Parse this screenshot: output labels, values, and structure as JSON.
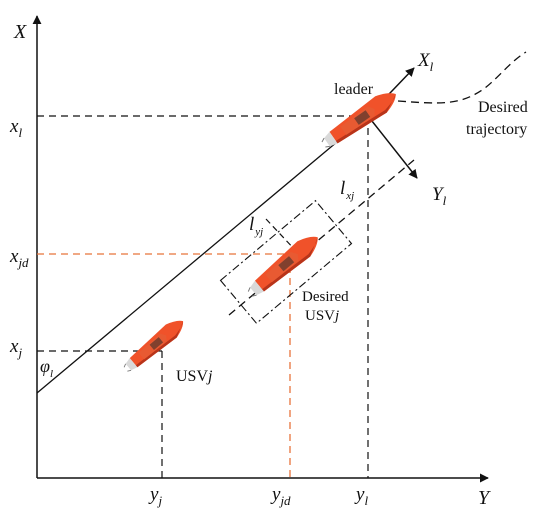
{
  "colors": {
    "ink": "#111111",
    "desired": "#e8743b",
    "boat_hull": "#f0522a",
    "boat_dark": "#b8341a",
    "boat_deck": "#e6e6e6"
  },
  "axes": {
    "x_axis": {
      "base": "X"
    },
    "y_axis": {
      "base": "Y"
    },
    "leader_x": {
      "base": "X",
      "sub": "l"
    },
    "leader_y": {
      "base": "Y",
      "sub": "l"
    }
  },
  "ticks": {
    "x_l": {
      "base": "x",
      "sub": "l"
    },
    "x_jd": {
      "base": "x",
      "sub": "jd"
    },
    "x_j": {
      "base": "x",
      "sub": "j"
    },
    "y_j": {
      "base": "y",
      "sub": "j"
    },
    "y_jd": {
      "base": "y",
      "sub": "jd"
    },
    "y_l": {
      "base": "y",
      "sub": "l"
    }
  },
  "distances": {
    "l_xj": {
      "base": "l",
      "sub": "xj"
    },
    "l_yj": {
      "base": "l",
      "sub": "yj"
    }
  },
  "angle": {
    "base": "φ",
    "sub": "l"
  },
  "labels": {
    "leader": "leader",
    "desired_traj_1": "Desired",
    "desired_traj_2": "trajectory",
    "desired_usv_1": "Desired",
    "desired_usv_2": "USV",
    "desired_usv_j": "j",
    "usv": "USV",
    "usv_j": "j"
  }
}
